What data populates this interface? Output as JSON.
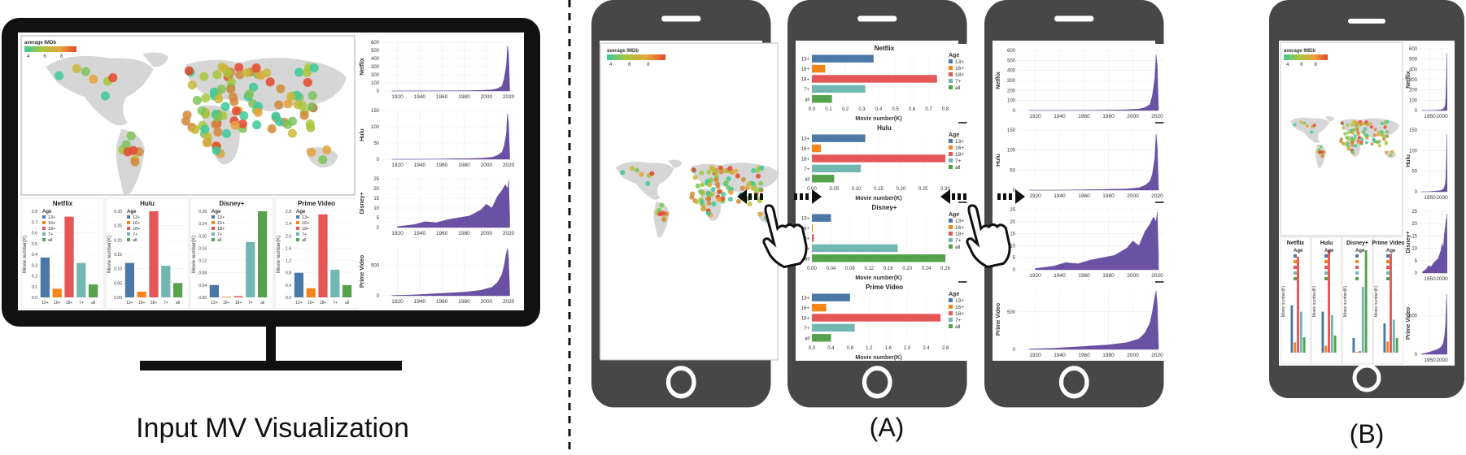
{
  "captions": {
    "input": "Input MV Visualization",
    "a": "(A)",
    "b": "(B)"
  },
  "legend": {
    "title": "average IMDb",
    "ticks": [
      "4",
      "6",
      "8"
    ],
    "colors": [
      "#3cc99a",
      "#a8c63c",
      "#e8a23a",
      "#e4472d"
    ]
  },
  "platforms": [
    "Netflix",
    "Hulu",
    "Disney+",
    "Prime Video"
  ],
  "age_legend": {
    "title": "Age",
    "items": [
      "13+",
      "16+",
      "18+",
      "7+",
      "all"
    ],
    "colors": [
      "#4c78a8",
      "#f58518",
      "#e45756",
      "#72b7b2",
      "#54a24b"
    ]
  },
  "ylabels": {
    "movie_number": "Movie number(K)"
  },
  "chart_data": [
    {
      "type": "bar",
      "title": "Netflix",
      "categories": [
        "13+",
        "16+",
        "18+",
        "7+",
        "all"
      ],
      "values": [
        0.37,
        0.08,
        0.75,
        0.32,
        0.12
      ],
      "ylabel": "Movie number(K)",
      "ylim": [
        0,
        0.8
      ],
      "ticks": [
        "0.0",
        "0.1",
        "0.2",
        "0.3",
        "0.4",
        "0.5",
        "0.6",
        "0.7",
        "0.8"
      ]
    },
    {
      "type": "bar",
      "title": "Hulu",
      "categories": [
        "13+",
        "16+",
        "18+",
        "7+",
        "all"
      ],
      "values": [
        0.12,
        0.02,
        0.3,
        0.11,
        0.05
      ],
      "ylabel": "Movie number(K)",
      "ylim": [
        0,
        0.3
      ],
      "ticks": [
        "0.00",
        "0.05",
        "0.10",
        "0.15",
        "0.20",
        "0.25",
        "0.30"
      ]
    },
    {
      "type": "bar",
      "title": "Disney+",
      "categories": [
        "13+",
        "16+",
        "18+",
        "7+",
        "all"
      ],
      "values": [
        0.04,
        0.002,
        0.004,
        0.18,
        0.28
      ],
      "ylabel": "Movie number(K)",
      "ylim": [
        0,
        0.28
      ],
      "ticks": [
        "0.00",
        "0.04",
        "0.08",
        "0.12",
        "0.16",
        "0.20",
        "0.24",
        "0.28"
      ]
    },
    {
      "type": "bar",
      "title": "Prime Video",
      "categories": [
        "13+",
        "16+",
        "18+",
        "7+",
        "all"
      ],
      "values": [
        0.8,
        0.3,
        2.7,
        0.9,
        0.4
      ],
      "ylabel": "Movie number(K)",
      "ylim": [
        0,
        2.8
      ],
      "ticks": [
        "0.0",
        "0.4",
        "0.8",
        "1.2",
        "1.6",
        "2.0",
        "2.4",
        "2.8"
      ]
    },
    {
      "type": "area",
      "title": "Netflix",
      "ylabel": "Netflix",
      "ylim": [
        0,
        600
      ],
      "xticks": [
        "1920",
        "1940",
        "1960",
        "1980",
        "2000",
        "2020"
      ],
      "yticks": [
        "0",
        "100",
        "200",
        "300",
        "400",
        "500",
        "600"
      ],
      "x": [
        1915,
        1940,
        1960,
        1980,
        1995,
        2005,
        2010,
        2014,
        2016,
        2018,
        2019,
        2020,
        2021
      ],
      "values": [
        0,
        1,
        2,
        4,
        8,
        15,
        30,
        60,
        150,
        320,
        560,
        450,
        30
      ]
    },
    {
      "type": "area",
      "title": "Hulu",
      "ylabel": "Hulu",
      "ylim": [
        0,
        150
      ],
      "xticks": [
        "1920",
        "1940",
        "1960",
        "1980",
        "2000",
        "2020"
      ],
      "yticks": [
        "0",
        "50",
        "100",
        "150"
      ],
      "x": [
        1915,
        1940,
        1960,
        1980,
        1995,
        2005,
        2010,
        2014,
        2016,
        2018,
        2019,
        2020,
        2021
      ],
      "values": [
        0,
        0,
        1,
        2,
        3,
        6,
        12,
        22,
        40,
        80,
        140,
        110,
        10
      ]
    },
    {
      "type": "area",
      "title": "Disney+",
      "ylabel": "Disney+",
      "ylim": [
        0,
        25
      ],
      "xticks": [
        "1920",
        "1940",
        "1960",
        "1980",
        "2000",
        "2020"
      ],
      "yticks": [
        "0",
        "5",
        "10",
        "15",
        "20",
        "25"
      ],
      "x": [
        1920,
        1935,
        1945,
        1955,
        1965,
        1975,
        1985,
        1995,
        2000,
        2005,
        2010,
        2014,
        2017,
        2019,
        2020,
        2021
      ],
      "values": [
        0.5,
        1.5,
        3,
        2.5,
        4,
        5,
        6,
        9,
        12,
        10,
        16,
        19,
        22,
        20,
        24,
        6
      ]
    },
    {
      "type": "area",
      "title": "Prime Video",
      "ylabel": "Prime Video",
      "ylim": [
        0,
        800
      ],
      "xticks": [
        "1920",
        "1940",
        "1960",
        "1980",
        "2000",
        "2020"
      ],
      "yticks": [
        "0",
        "500"
      ],
      "x": [
        1915,
        1935,
        1950,
        1965,
        1980,
        1995,
        2005,
        2010,
        2014,
        2016,
        2018,
        2019,
        2020,
        2021
      ],
      "values": [
        5,
        15,
        30,
        45,
        60,
        90,
        140,
        220,
        350,
        500,
        700,
        780,
        600,
        60
      ]
    }
  ],
  "map_points": {
    "count": 120,
    "note_values": []
  }
}
